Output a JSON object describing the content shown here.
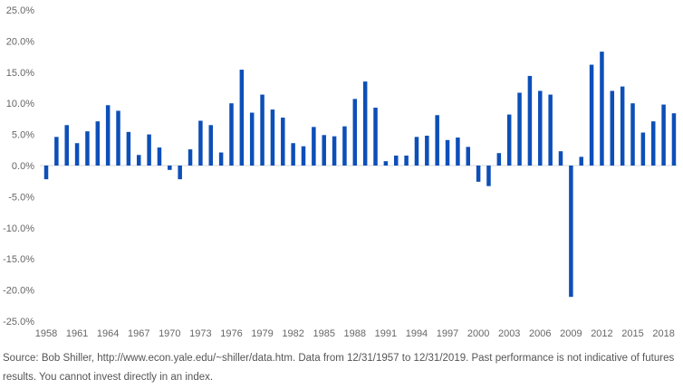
{
  "chart_data": {
    "type": "bar",
    "title": "",
    "xlabel": "",
    "ylabel": "",
    "ylim": [
      -25,
      25
    ],
    "y_ticks": [
      25,
      20,
      15,
      10,
      5,
      0,
      -5,
      -10,
      -15,
      -20,
      -25
    ],
    "y_tick_labels": [
      "25.0%",
      "20.0%",
      "15.0%",
      "10.0%",
      "5.0%",
      "0.0%",
      "-5.0%",
      "-10.0%",
      "-15.0%",
      "-20.0%",
      "-25.0%"
    ],
    "x_tick_labels": [
      "1958",
      "1961",
      "1964",
      "1967",
      "1970",
      "1973",
      "1976",
      "1979",
      "1982",
      "1985",
      "1988",
      "1991",
      "1994",
      "1997",
      "2000",
      "2003",
      "2006",
      "2009",
      "2012",
      "2015",
      "2018"
    ],
    "grid": false,
    "categories": [
      1958,
      1959,
      1960,
      1961,
      1962,
      1963,
      1964,
      1965,
      1966,
      1967,
      1968,
      1969,
      1970,
      1971,
      1972,
      1973,
      1974,
      1975,
      1976,
      1977,
      1978,
      1979,
      1980,
      1981,
      1982,
      1983,
      1984,
      1985,
      1986,
      1987,
      1988,
      1989,
      1990,
      1991,
      1992,
      1993,
      1994,
      1995,
      1996,
      1997,
      1998,
      1999,
      2000,
      2001,
      2002,
      2003,
      2004,
      2005,
      2006,
      2007,
      2008,
      2009,
      2010,
      2011,
      2012,
      2013,
      2014,
      2015,
      2016,
      2017,
      2018,
      2019
    ],
    "values": [
      -2.2,
      4.6,
      6.5,
      3.6,
      5.5,
      7.1,
      9.7,
      8.8,
      5.4,
      1.7,
      5.0,
      2.9,
      -0.7,
      -2.2,
      2.6,
      7.2,
      6.5,
      2.1,
      10.0,
      15.4,
      8.5,
      11.4,
      9.0,
      7.7,
      3.6,
      3.1,
      6.2,
      4.9,
      4.7,
      6.3,
      10.7,
      13.5,
      9.3,
      0.7,
      1.6,
      1.6,
      4.6,
      4.8,
      8.1,
      4.1,
      4.5,
      3.0,
      -2.6,
      -3.3,
      2.0,
      8.2,
      11.7,
      14.4,
      12.0,
      11.4,
      2.3,
      -21.1,
      1.4,
      16.2,
      18.3,
      12.0,
      12.7,
      10.0,
      5.3,
      7.1,
      9.8,
      8.4
    ],
    "bar_color": "#0D4FB8",
    "axis_color": "#D9D9D9",
    "label_color": "#666666"
  },
  "source_note": "Source: Bob Shiller, http://www.econ.yale.edu/~shiller/data.htm. Data from 12/31/1957 to 12/31/2019. Past performance is not indicative of futures results. You cannot invest directly in an index."
}
